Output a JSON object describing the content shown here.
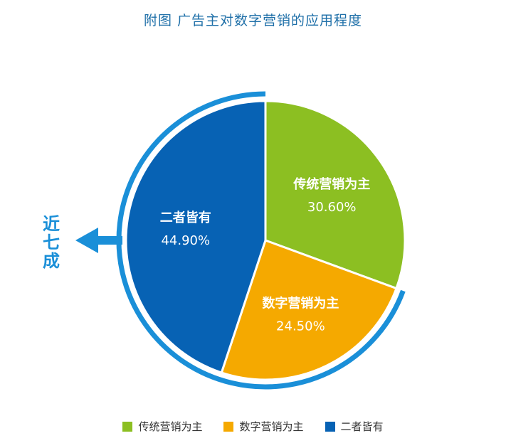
{
  "title": "附图 广告主对数字营销的应用程度",
  "callout": {
    "chars": [
      "近",
      "七",
      "成"
    ],
    "color": "#1a8fd8"
  },
  "colors": {
    "ring": "#1a8fd8"
  },
  "chart_data": {
    "type": "pie",
    "title": "附图 广告主对数字营销的应用程度",
    "slices": [
      {
        "label": "传统营销为主",
        "value": 30.6,
        "value_text": "30.60%",
        "color": "#8cbf22"
      },
      {
        "label": "数字营销为主",
        "value": 24.5,
        "value_text": "24.50%",
        "color": "#f5a900"
      },
      {
        "label": "二者皆有",
        "value": 44.9,
        "value_text": "44.90%",
        "color": "#0762b4"
      }
    ],
    "legend_position": "bottom"
  }
}
